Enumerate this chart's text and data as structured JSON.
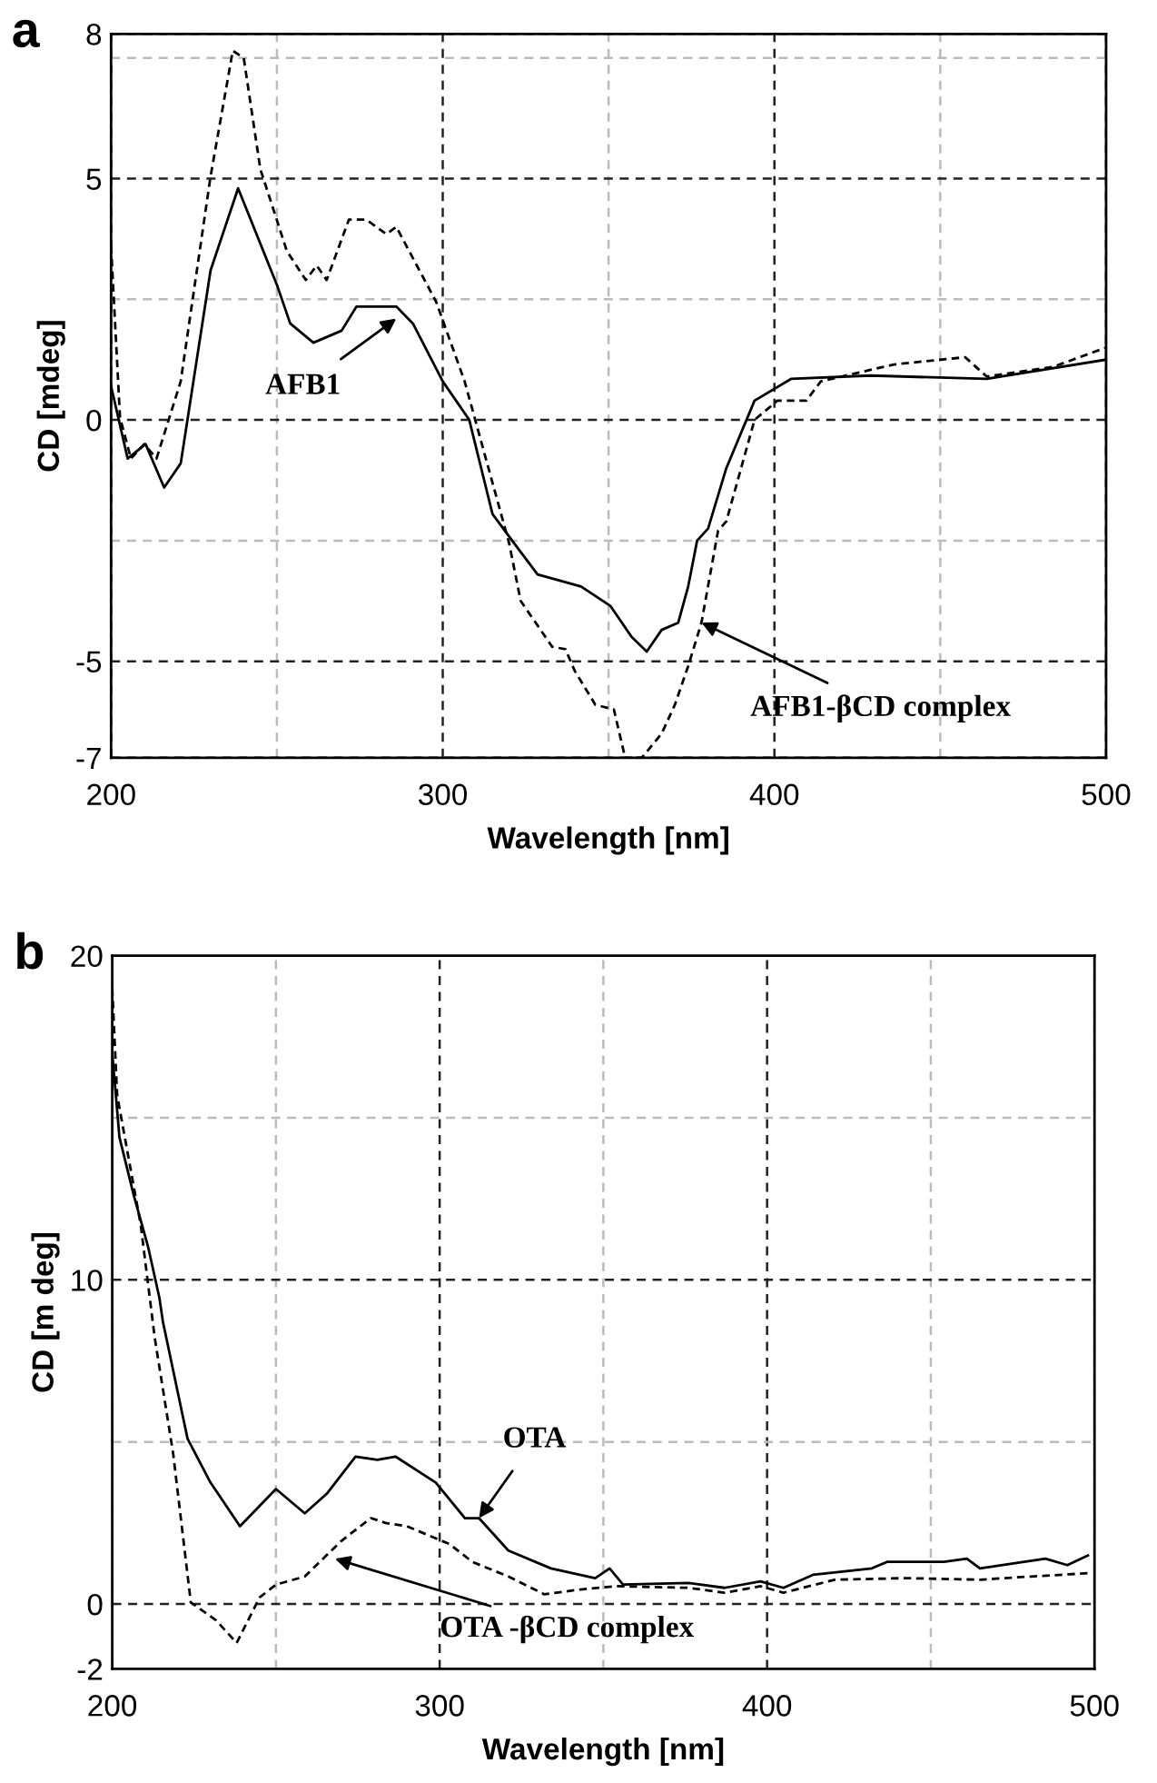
{
  "chart_data": [
    {
      "type": "line",
      "xlabel": "Wavelength [nm]",
      "ylabel": "CD [mdeg]",
      "xlim": [
        200,
        500
      ],
      "ylim": [
        -7,
        8
      ],
      "xticks": [
        200,
        {
          "value": 250,
          "label": null
        },
        300,
        {
          "value": 350,
          "label": null
        },
        400,
        {
          "value": 450,
          "label": null
        },
        500
      ],
      "yticks": [
        -7,
        -5,
        {
          "value": -2.5,
          "label": null
        },
        0,
        {
          "value": 2.5,
          "label": null
        },
        5,
        {
          "value": 7.5,
          "label": null
        },
        8
      ],
      "grid": true,
      "legend": false,
      "series": [
        {
          "color": "#000000",
          "line_style": "solid",
          "x": [
            200,
            205,
            210.4,
            216,
            221,
            230,
            238.3,
            250,
            254,
            261,
            269.5,
            274,
            286,
            291,
            300,
            308,
            315,
            322,
            328.6,
            341.7,
            350.5,
            357,
            361.5,
            366,
            371,
            374,
            376.7,
            380,
            385.5,
            394,
            405,
            429,
            464,
            500
          ],
          "values": [
            0.7,
            -0.8,
            -0.5,
            -1.4,
            -0.9,
            3.1,
            4.8,
            2.8,
            2.0,
            1.6,
            1.85,
            2.35,
            2.35,
            2.0,
            0.8,
            0,
            -1.95,
            -2.6,
            -3.2,
            -3.45,
            -3.85,
            -4.5,
            -4.8,
            -4.35,
            -4.2,
            -3.45,
            -2.5,
            -2.25,
            -1.0,
            0.4,
            0.85,
            0.92,
            0.85,
            1.25
          ]
        },
        {
          "color": "#000000",
          "line_style": "dashed",
          "x": [
            200,
            202.7,
            206,
            210,
            213.7,
            221,
            230,
            236.7,
            240,
            245,
            253,
            258.7,
            262,
            265,
            271.7,
            277,
            283,
            286,
            298,
            306.6,
            320,
            323.5,
            333,
            337,
            339.8,
            346,
            351.6,
            355,
            360,
            366,
            370,
            374,
            378,
            383,
            385.5,
            394,
            400.9,
            409.6,
            414,
            436,
            457.5,
            464,
            484,
            500
          ],
          "values": [
            3.6,
            0.05,
            -0.8,
            -0.5,
            -0.8,
            0.8,
            5.05,
            7.65,
            7.5,
            5.2,
            3.5,
            2.9,
            3.2,
            2.9,
            4.15,
            4.15,
            3.85,
            4.0,
            2.45,
            0.8,
            -2.55,
            -3.75,
            -4.7,
            -4.75,
            -5.2,
            -5.9,
            -6.0,
            -7.0,
            -7.0,
            -6.5,
            -5.9,
            -5.1,
            -4.2,
            -2.3,
            -2.1,
            0,
            0.4,
            0.4,
            0.8,
            1.15,
            1.3,
            0.9,
            1.1,
            1.5
          ]
        }
      ],
      "annotations": [
        "a",
        {
          "text": "AFB1",
          "x": 286,
          "y": 2.1
        },
        {
          "text": "AFB1-βCD complex",
          "x": 378,
          "y": -4.2
        }
      ]
    },
    {
      "type": "line",
      "xlabel": "Wavelength [nm]",
      "ylabel": "CD [m deg]",
      "xlim": [
        200,
        500
      ],
      "ylim": [
        -2,
        20
      ],
      "xticks": [
        200,
        {
          "value": 250,
          "label": null
        },
        300,
        {
          "value": 350,
          "label": null
        },
        400,
        {
          "value": 450,
          "label": null
        },
        500
      ],
      "yticks": [
        -2,
        0,
        {
          "value": 5,
          "label": null
        },
        10,
        {
          "value": 15,
          "label": null
        },
        20
      ],
      "grid": true,
      "legend": false,
      "series": [
        {
          "color": "#000000",
          "line_style": "solid",
          "x": [
            200,
            202.2,
            206.6,
            211,
            214.4,
            215.5,
            223,
            230,
            239,
            250,
            258.8,
            265.5,
            274.3,
            281,
            286.5,
            298.8,
            307.7,
            312,
            321,
            334,
            347.5,
            351.9,
            356,
            376,
            387,
            398,
            405,
            414,
            432,
            436.6,
            454,
            461,
            465,
            485,
            491.7,
            498
          ],
          "values": [
            17,
            14.4,
            12.6,
            11.0,
            9.45,
            8.7,
            5.1,
            3.75,
            2.4,
            3.55,
            2.8,
            3.4,
            4.55,
            4.45,
            4.55,
            3.75,
            2.65,
            2.65,
            1.65,
            1.1,
            0.8,
            1.1,
            0.6,
            0.65,
            0.5,
            0.7,
            0.5,
            0.9,
            1.1,
            1.3,
            1.3,
            1.4,
            1.1,
            1.4,
            1.2,
            1.5
          ]
        },
        {
          "color": "#000000",
          "line_style": "dashed",
          "x": [
            200,
            201.5,
            208.7,
            213,
            218.6,
            224,
            231.7,
            238,
            245,
            250,
            258.8,
            270,
            279,
            283.5,
            290,
            303,
            310,
            321,
            332,
            343,
            354,
            376,
            387,
            398,
            405,
            420.6,
            442.8,
            465,
            480.5,
            498
          ],
          "values": [
            19,
            15.7,
            11.7,
            8.2,
            4.65,
            0.05,
            -0.5,
            -1.2,
            0.2,
            0.6,
            0.85,
            1.95,
            2.65,
            2.5,
            2.4,
            1.85,
            1.3,
            0.85,
            0.3,
            0.45,
            0.55,
            0.5,
            0.35,
            0.55,
            0.35,
            0.75,
            0.8,
            0.75,
            0.85,
            0.95
          ]
        }
      ],
      "annotations": [
        "b",
        {
          "text": "OTA",
          "x": 312,
          "y": 2.65
        },
        {
          "text": "OTA -βCD complex",
          "x": 268,
          "y": 1.4
        }
      ]
    }
  ]
}
